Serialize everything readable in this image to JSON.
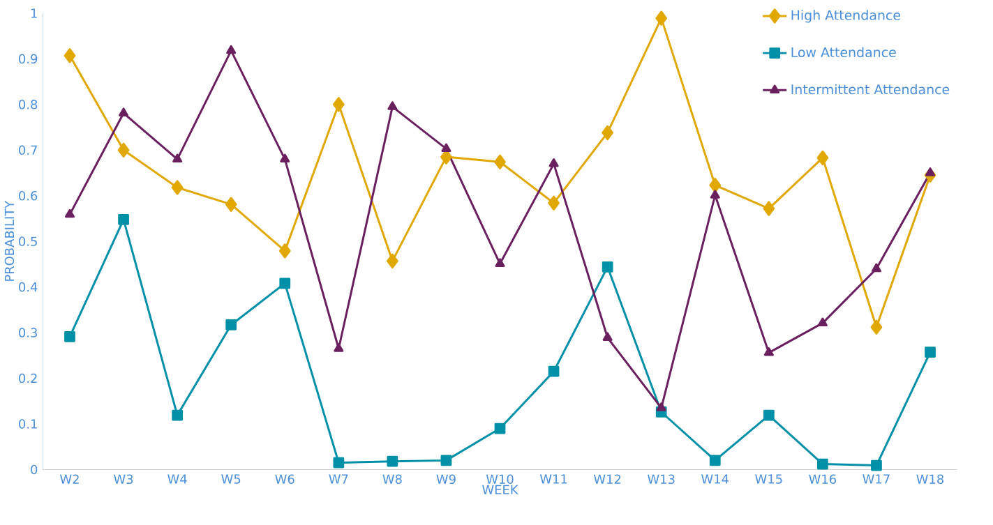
{
  "chart_data": {
    "type": "line",
    "xlabel": "WEEK",
    "ylabel": "PROBABILITY",
    "categories": [
      "W2",
      "W3",
      "W4",
      "W5",
      "W6",
      "W7",
      "W8",
      "W9",
      "W10",
      "W11",
      "W12",
      "W13",
      "W14",
      "W15",
      "W16",
      "W17",
      "W18"
    ],
    "series": [
      {
        "name": "High Attendance",
        "color": "#e0a800",
        "marker": "diamond",
        "values": [
          0.907,
          0.7,
          0.618,
          0.581,
          0.479,
          0.8,
          0.457,
          0.685,
          0.674,
          0.584,
          0.738,
          0.989,
          0.623,
          0.572,
          0.683,
          0.312,
          0.645
        ]
      },
      {
        "name": "Low Attendance",
        "color": "#0090a8",
        "marker": "square",
        "values": [
          0.291,
          0.548,
          0.119,
          0.317,
          0.408,
          0.015,
          0.018,
          0.02,
          0.09,
          0.215,
          0.444,
          0.126,
          0.02,
          0.119,
          0.012,
          0.009,
          0.257
        ]
      },
      {
        "name": "Intermittent Attendance",
        "color": "#6a1f5e",
        "marker": "triangle",
        "values": [
          0.559,
          0.781,
          0.68,
          0.918,
          0.68,
          0.265,
          0.795,
          0.703,
          0.451,
          0.67,
          0.289,
          0.135,
          0.601,
          0.256,
          0.321,
          0.44,
          0.65
        ]
      }
    ],
    "ylim": [
      0,
      1
    ],
    "yticks": [
      0,
      0.1,
      0.2,
      0.3,
      0.4,
      0.5,
      0.6,
      0.7,
      0.8,
      0.9,
      1
    ],
    "grid": false,
    "legend": "top right",
    "line_style": "solid"
  }
}
